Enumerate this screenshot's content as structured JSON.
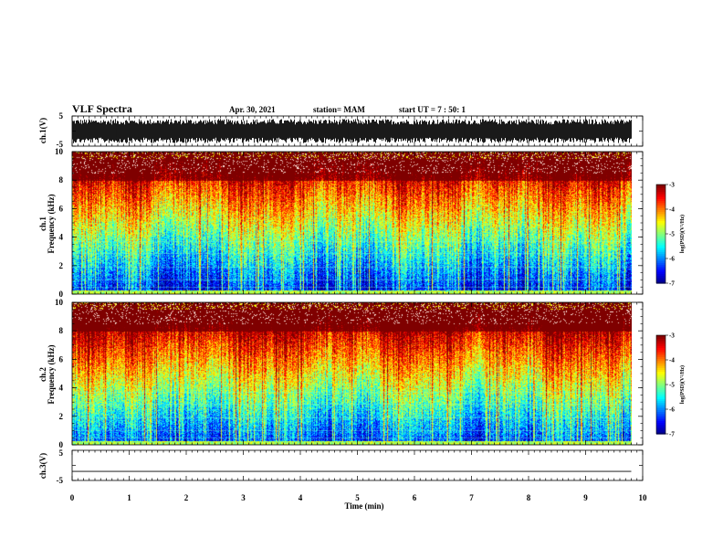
{
  "header": {
    "title": "VLF Spectra",
    "date": "Apr. 30, 2021",
    "station": "station= MAM",
    "start": "start  UT  =   7 : 50: 1"
  },
  "chart_data": [
    {
      "type": "line",
      "name": "waveform-ch1",
      "ylabel": "ch.1(V)",
      "ylim": [
        -5,
        5
      ],
      "yticks": [
        "5",
        "-5"
      ],
      "xlim": [
        0,
        10
      ],
      "description_level": "dense noise waveform, peak-to-peak ~ -4 to 4 V",
      "amplitude_range": [
        -4,
        4
      ],
      "x_end_min": 9.8
    },
    {
      "type": "heatmap",
      "name": "spectrogram-ch1",
      "ylabel_line1": "ch.1",
      "ylabel_line2": "Frequency (kHz)",
      "ylim": [
        0,
        10
      ],
      "yticks": [
        "0",
        "2",
        "4",
        "6",
        "8",
        "10"
      ],
      "xlim": [
        0,
        10
      ],
      "x_end_min": 9.8,
      "colorbar": {
        "label": "log(PSD)(V²/Hz)",
        "ticks": [
          "-3",
          "-4",
          "-5",
          "-6",
          "-7"
        ],
        "range": [
          -7,
          -3
        ]
      }
    },
    {
      "type": "heatmap",
      "name": "spectrogram-ch2",
      "ylabel_line1": "ch.2",
      "ylabel_line2": "Frequency (kHz)",
      "ylim": [
        0,
        10
      ],
      "yticks": [
        "0",
        "2",
        "4",
        "6",
        "8",
        "10"
      ],
      "xlim": [
        0,
        10
      ],
      "x_end_min": 9.8,
      "colorbar": {
        "label": "log(PSD)(V²/Hz)",
        "ticks": [
          "-3",
          "-4",
          "-5",
          "-6",
          "-7"
        ],
        "range": [
          -7,
          -3
        ]
      }
    },
    {
      "type": "line",
      "name": "waveform-ch3",
      "ylabel": "ch.3(V)",
      "ylim": [
        -5,
        5
      ],
      "yticks": [
        "5",
        "-5"
      ],
      "xlim": [
        0,
        10
      ],
      "value": -2,
      "x_end_min": 9.8
    }
  ],
  "xaxis": {
    "label": "Time  (min)",
    "ticks": [
      "0",
      "1",
      "2",
      "3",
      "4",
      "5",
      "6",
      "7",
      "8",
      "9",
      "10"
    ]
  }
}
